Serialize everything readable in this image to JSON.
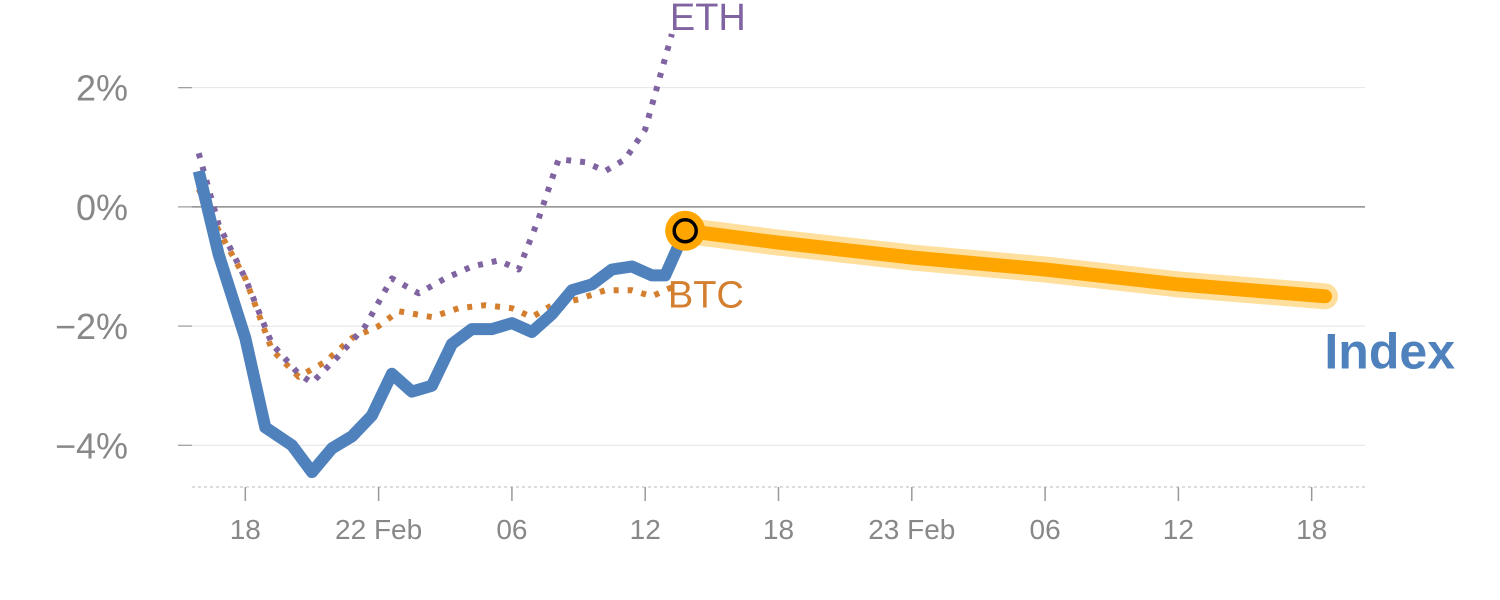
{
  "chart_data": {
    "type": "line",
    "x_axis": {
      "ticks": [
        "18",
        "22 Feb",
        "06",
        "12",
        "18",
        "23 Feb",
        "06",
        "12",
        "18"
      ]
    },
    "y_axis": {
      "ticks": [
        "2%",
        "0%",
        "−2%",
        "−4%"
      ],
      "tick_values": [
        2,
        0,
        -2,
        -4
      ],
      "range": [
        -4.7,
        2.8
      ],
      "unit": "%"
    },
    "x_range": [
      -0.4,
      8.4
    ],
    "grid": true,
    "series": [
      {
        "name": "ETH",
        "style": "dotted",
        "color": "#8064a2",
        "points": [
          [
            -0.35,
            0.9
          ],
          [
            -0.2,
            -0.3
          ],
          [
            0,
            -1.2
          ],
          [
            0.2,
            -2.3
          ],
          [
            0.4,
            -2.8
          ],
          [
            0.5,
            -2.95
          ],
          [
            0.7,
            -2.5
          ],
          [
            0.9,
            -2.0
          ],
          [
            1.1,
            -1.2
          ],
          [
            1.3,
            -1.45
          ],
          [
            1.5,
            -1.2
          ],
          [
            1.7,
            -1.0
          ],
          [
            1.9,
            -0.9
          ],
          [
            2.05,
            -1.05
          ],
          [
            2.2,
            -0.2
          ],
          [
            2.35,
            0.8
          ],
          [
            2.55,
            0.75
          ],
          [
            2.7,
            0.6
          ],
          [
            2.85,
            0.8
          ],
          [
            3.0,
            1.3
          ],
          [
            3.15,
            2.5
          ],
          [
            3.2,
            2.9
          ]
        ]
      },
      {
        "name": "BTC",
        "style": "dotted",
        "color": "#d47f2f",
        "points": [
          [
            -0.35,
            0.3
          ],
          [
            -0.2,
            -0.4
          ],
          [
            0,
            -1.2
          ],
          [
            0.2,
            -2.4
          ],
          [
            0.4,
            -2.85
          ],
          [
            0.6,
            -2.6
          ],
          [
            0.8,
            -2.2
          ],
          [
            1.0,
            -2.0
          ],
          [
            1.15,
            -1.75
          ],
          [
            1.4,
            -1.85
          ],
          [
            1.6,
            -1.7
          ],
          [
            1.8,
            -1.65
          ],
          [
            2.0,
            -1.7
          ],
          [
            2.15,
            -1.85
          ],
          [
            2.3,
            -1.65
          ],
          [
            2.5,
            -1.55
          ],
          [
            2.7,
            -1.4
          ],
          [
            2.9,
            -1.4
          ],
          [
            3.05,
            -1.5
          ],
          [
            3.2,
            -1.35
          ]
        ]
      },
      {
        "name": "Index",
        "style": "solid",
        "color": "#4f81bd",
        "points": [
          [
            -0.35,
            0.6
          ],
          [
            -0.2,
            -0.8
          ],
          [
            0,
            -2.2
          ],
          [
            0.15,
            -3.7
          ],
          [
            0.35,
            -4.0
          ],
          [
            0.5,
            -4.45
          ],
          [
            0.65,
            -4.05
          ],
          [
            0.8,
            -3.85
          ],
          [
            0.95,
            -3.5
          ],
          [
            1.1,
            -2.8
          ],
          [
            1.25,
            -3.1
          ],
          [
            1.4,
            -3.0
          ],
          [
            1.55,
            -2.3
          ],
          [
            1.7,
            -2.05
          ],
          [
            1.85,
            -2.05
          ],
          [
            2.0,
            -1.95
          ],
          [
            2.15,
            -2.1
          ],
          [
            2.3,
            -1.8
          ],
          [
            2.45,
            -1.4
          ],
          [
            2.6,
            -1.3
          ],
          [
            2.75,
            -1.05
          ],
          [
            2.9,
            -1.0
          ],
          [
            3.05,
            -1.15
          ],
          [
            3.15,
            -1.15
          ],
          [
            3.3,
            -0.4
          ]
        ]
      },
      {
        "name": "Index forecast",
        "style": "band",
        "color": "#ffa500",
        "points": [
          [
            3.3,
            -0.4
          ],
          [
            4.0,
            -0.6
          ],
          [
            5.0,
            -0.85
          ],
          [
            6.0,
            -1.05
          ],
          [
            7.0,
            -1.3
          ],
          [
            8.1,
            -1.5
          ]
        ]
      }
    ],
    "marker": {
      "x": 3.3,
      "y": -0.4,
      "color": "#ffa500"
    },
    "labels": [
      {
        "text": "ETH",
        "color": "#8064a2"
      },
      {
        "text": "BTC",
        "color": "#d47f2f"
      },
      {
        "text": "Index",
        "color": "#4f81bd"
      }
    ]
  }
}
